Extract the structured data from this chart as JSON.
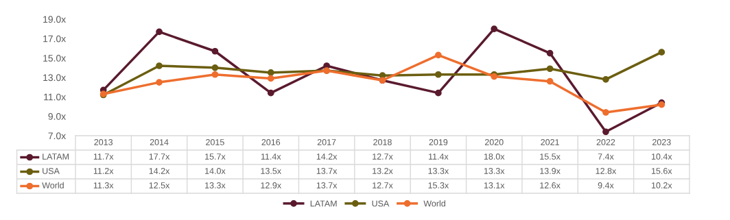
{
  "chart_data": {
    "type": "line",
    "categories": [
      "2013",
      "2014",
      "2015",
      "2016",
      "2017",
      "2018",
      "2019",
      "2020",
      "2021",
      "2022",
      "2023"
    ],
    "series": [
      {
        "name": "LATAM",
        "color": "#5a1a2e",
        "values": [
          11.7,
          17.7,
          15.7,
          11.4,
          14.2,
          12.7,
          11.4,
          18.0,
          15.5,
          7.4,
          10.4
        ],
        "value_labels": [
          "11.7x",
          "17.7x",
          "15.7x",
          "11.4x",
          "14.2x",
          "12.7x",
          "11.4x",
          "18.0x",
          "15.5x",
          "7.4x",
          "10.4x"
        ]
      },
      {
        "name": "USA",
        "color": "#6b5e10",
        "values": [
          11.2,
          14.2,
          14.0,
          13.5,
          13.7,
          13.2,
          13.3,
          13.3,
          13.9,
          12.8,
          15.6
        ],
        "value_labels": [
          "11.2x",
          "14.2x",
          "14.0x",
          "13.5x",
          "13.7x",
          "13.2x",
          "13.3x",
          "13.3x",
          "13.9x",
          "12.8x",
          "15.6x"
        ]
      },
      {
        "name": "World",
        "color": "#ee6e2e",
        "values": [
          11.3,
          12.5,
          13.3,
          12.9,
          13.7,
          12.7,
          15.3,
          13.1,
          12.6,
          9.4,
          10.2
        ],
        "value_labels": [
          "11.3x",
          "12.5x",
          "13.3x",
          "12.9x",
          "13.7x",
          "12.7x",
          "15.3x",
          "13.1x",
          "12.6x",
          "9.4x",
          "10.2x"
        ]
      }
    ],
    "ylim": [
      7,
      19
    ],
    "yticks": [
      {
        "value": 7,
        "label": "7.0x"
      },
      {
        "value": 9,
        "label": "9.0x"
      },
      {
        "value": 11,
        "label": "11.0x"
      },
      {
        "value": 13,
        "label": "13.0x"
      },
      {
        "value": 15,
        "label": "15.0x"
      },
      {
        "value": 17,
        "label": "17.0x"
      },
      {
        "value": 19,
        "label": "19.0x"
      }
    ],
    "grid": false,
    "legend": "bottom",
    "marker": "circle",
    "line_style": "solid"
  }
}
